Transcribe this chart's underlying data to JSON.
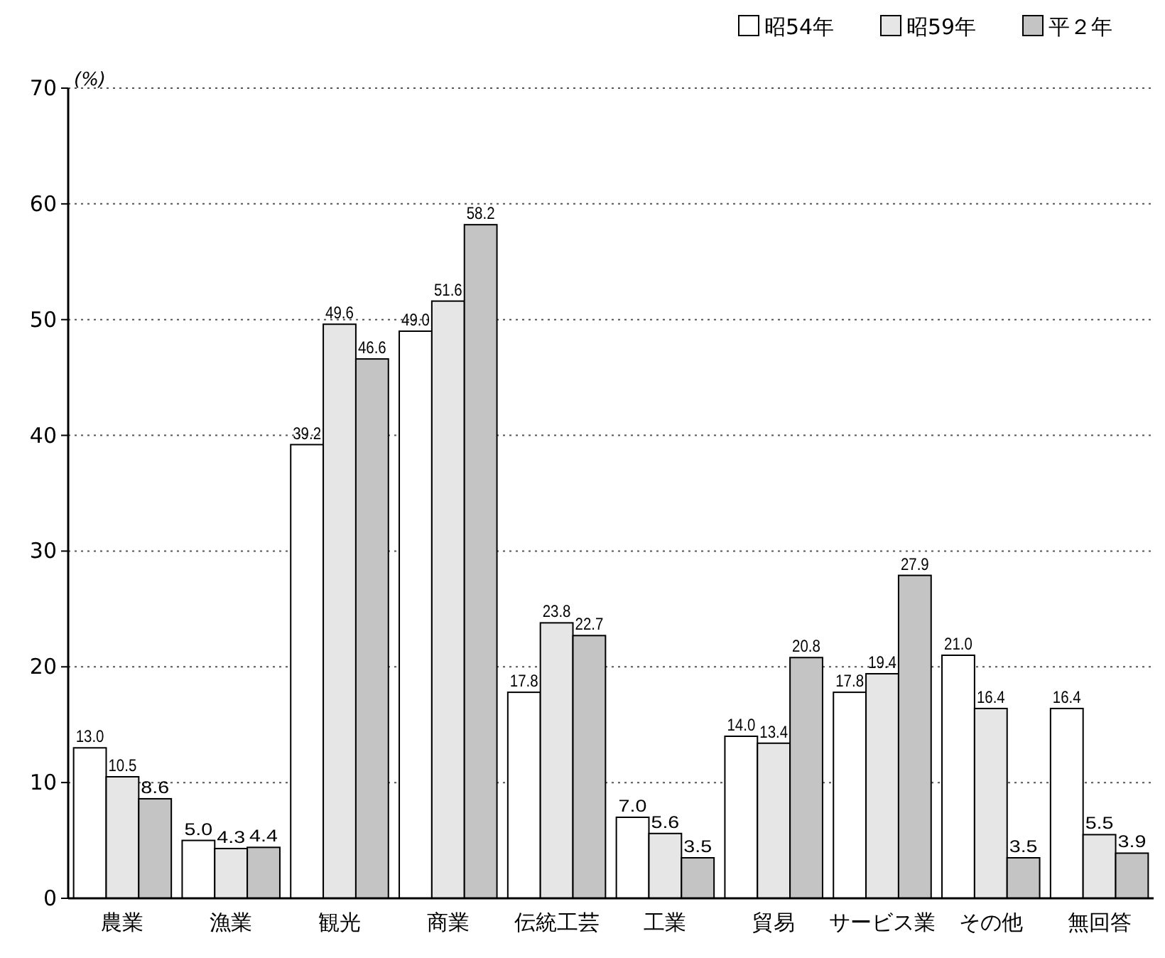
{
  "chart_data": {
    "type": "bar",
    "ylabel": "(%)",
    "categories": [
      "農業",
      "漁業",
      "観光",
      "商業",
      "伝統工芸",
      "工業",
      "貿易",
      "サービス業",
      "その他",
      "無回答"
    ],
    "series": [
      {
        "name": "昭54年",
        "color": "#ffffff",
        "values": [
          13.0,
          5.0,
          39.2,
          49.0,
          17.8,
          7.0,
          14.0,
          17.8,
          21.0,
          16.4
        ],
        "value_labels": [
          "13.0",
          "5.0",
          "39.2",
          "49.0",
          "17.8",
          "7.0",
          "14.0",
          "17.8",
          "21.0",
          "16.4"
        ]
      },
      {
        "name": "昭59年",
        "color": "#e6e6e6",
        "values": [
          10.5,
          4.3,
          49.6,
          51.6,
          23.8,
          5.6,
          13.4,
          19.4,
          16.4,
          5.5
        ],
        "value_labels": [
          "10.5",
          "4.3",
          "49.6",
          "51.6",
          "23.8",
          "5.6",
          "13.4",
          "19.4",
          "16.4",
          "5.5"
        ]
      },
      {
        "name": "平２年",
        "color": "#c4c4c4",
        "values": [
          8.6,
          4.4,
          46.6,
          58.2,
          22.7,
          3.5,
          20.8,
          27.9,
          3.5,
          3.9
        ],
        "value_labels": [
          "8.6",
          "4.4",
          "46.6",
          "58.2",
          "22.7",
          "3.5",
          "20.8",
          "27.9",
          "3.5",
          "3.9"
        ]
      }
    ],
    "ylim": [
      0,
      70
    ],
    "yticks": [
      0,
      10,
      20,
      30,
      40,
      50,
      60,
      70
    ],
    "grid": "y",
    "legend": "top right"
  }
}
